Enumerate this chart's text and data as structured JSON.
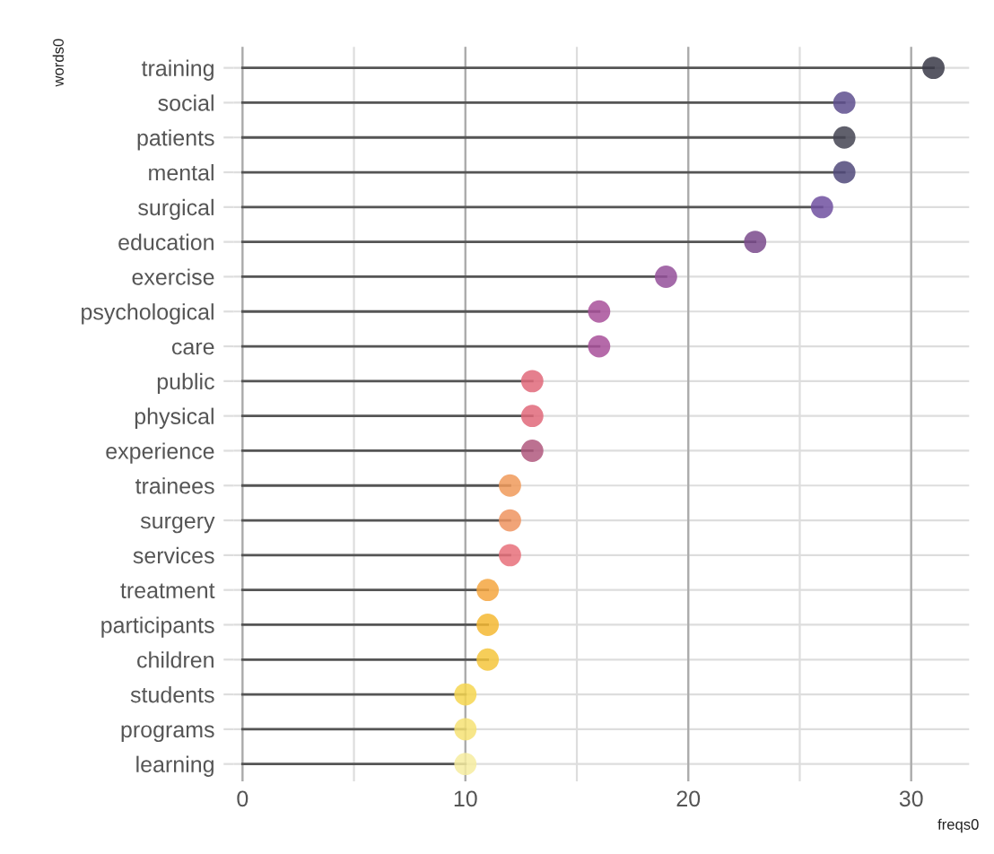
{
  "chart_data": {
    "type": "lollipop",
    "orientation": "horizontal",
    "xlabel": "freqs0",
    "ylabel": "words0",
    "categories": [
      "training",
      "social",
      "patients",
      "mental",
      "surgical",
      "education",
      "exercise",
      "psychological",
      "care",
      "public",
      "physical",
      "experience",
      "trainees",
      "surgery",
      "services",
      "treatment",
      "participants",
      "children",
      "students",
      "programs",
      "learning"
    ],
    "values": [
      31,
      27,
      27,
      27,
      26,
      23,
      19,
      16,
      16,
      13,
      13,
      13,
      12,
      12,
      12,
      11,
      11,
      11,
      10,
      10,
      10
    ],
    "colors": [
      "#3a3a48",
      "#5e4f8e",
      "#444452",
      "#50497a",
      "#7050a0",
      "#7a4a8c",
      "#94509a",
      "#a8509a",
      "#a8509a",
      "#e0687a",
      "#e0687a",
      "#b0587e",
      "#f09a5a",
      "#ee9460",
      "#e8707a",
      "#f4a640",
      "#f5b832",
      "#f5c63c",
      "#f6d650",
      "#f6e274",
      "#f6eca0"
    ],
    "xlim": [
      -0.4,
      32.6
    ],
    "xticks": [
      0,
      {
        "value": 5,
        "label": null
      },
      10,
      {
        "value": 15,
        "label": null
      },
      20,
      {
        "value": 25,
        "label": null
      },
      30
    ],
    "grid": true,
    "marker": "circle"
  }
}
